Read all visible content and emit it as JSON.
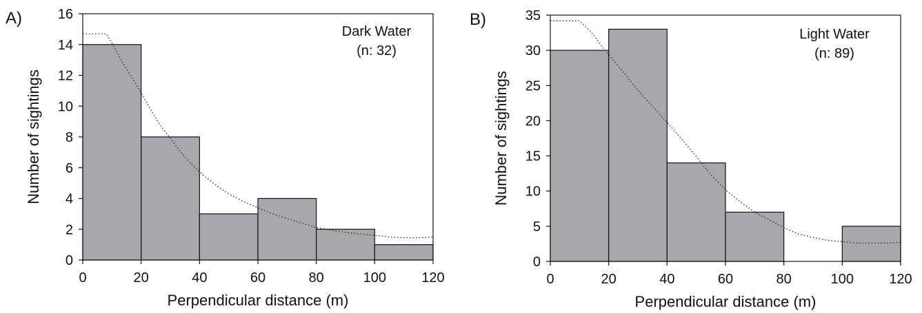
{
  "colors": {
    "bar_fill": "#a6a8ad",
    "axis": "#111111",
    "text": "#111111"
  },
  "chart_data": [
    {
      "type": "bar",
      "panel_label": "A)",
      "annotation_lines": [
        "Dark Water",
        "(n: 32)"
      ],
      "bins": [
        [
          0,
          20
        ],
        [
          20,
          40
        ],
        [
          40,
          60
        ],
        [
          60,
          80
        ],
        [
          80,
          100
        ],
        [
          100,
          120
        ]
      ],
      "values": [
        14,
        8,
        3,
        4,
        2,
        1
      ],
      "xlabel": "Perpendicular distance (m)",
      "ylabel": "Number of sightings",
      "xlim": [
        0,
        120
      ],
      "ylim": [
        0,
        16
      ],
      "xticks": [
        0,
        20,
        40,
        60,
        80,
        100,
        120
      ],
      "yticks": [
        0,
        2,
        4,
        6,
        8,
        10,
        12,
        14,
        16
      ],
      "grid": false,
      "fitted_curve": {
        "style": "dotted",
        "x": [
          0,
          2,
          4,
          6,
          8,
          10,
          14,
          18,
          22,
          26,
          30,
          34,
          38,
          42,
          46,
          50,
          55,
          60,
          65,
          70,
          75,
          80,
          85,
          90,
          95,
          100,
          105,
          110,
          115,
          120
        ],
        "y": [
          14.7,
          14.7,
          14.7,
          14.7,
          14.7,
          14.1,
          12.7,
          11.5,
          10.2,
          8.9,
          7.9,
          6.9,
          6.1,
          5.4,
          4.8,
          4.3,
          3.8,
          3.4,
          3.0,
          2.7,
          2.4,
          2.1,
          1.95,
          1.8,
          1.7,
          1.6,
          1.5,
          1.45,
          1.45,
          1.5
        ]
      }
    },
    {
      "type": "bar",
      "panel_label": "B)",
      "annotation_lines": [
        "Light Water",
        "(n: 89)"
      ],
      "bins": [
        [
          0,
          20
        ],
        [
          20,
          40
        ],
        [
          40,
          60
        ],
        [
          60,
          80
        ],
        [
          80,
          100
        ],
        [
          100,
          120
        ]
      ],
      "values": [
        30,
        33,
        14,
        7,
        0,
        5
      ],
      "xlabel": "Perpendicular distance (m)",
      "ylabel": "Number of sightings",
      "xlim": [
        0,
        120
      ],
      "ylim": [
        0,
        35
      ],
      "xticks": [
        0,
        20,
        40,
        60,
        80,
        100,
        120
      ],
      "yticks": [
        0,
        5,
        10,
        15,
        20,
        25,
        30,
        35
      ],
      "grid": false,
      "fitted_curve": {
        "style": "dotted",
        "x": [
          0,
          2,
          4,
          6,
          8,
          10,
          14,
          18,
          22,
          26,
          30,
          34,
          38,
          42,
          46,
          50,
          55,
          60,
          65,
          70,
          75,
          80,
          85,
          90,
          95,
          100,
          105,
          110,
          115,
          120
        ],
        "y": [
          34.2,
          34.2,
          34.2,
          34.2,
          34.2,
          34.2,
          32.6,
          30.4,
          28.4,
          26.4,
          24.3,
          22.5,
          20.7,
          18.8,
          16.9,
          14.9,
          12.3,
          10.2,
          8.5,
          7.0,
          5.9,
          4.8,
          3.9,
          3.4,
          3.0,
          2.8,
          2.6,
          2.6,
          2.6,
          2.7
        ]
      }
    }
  ]
}
